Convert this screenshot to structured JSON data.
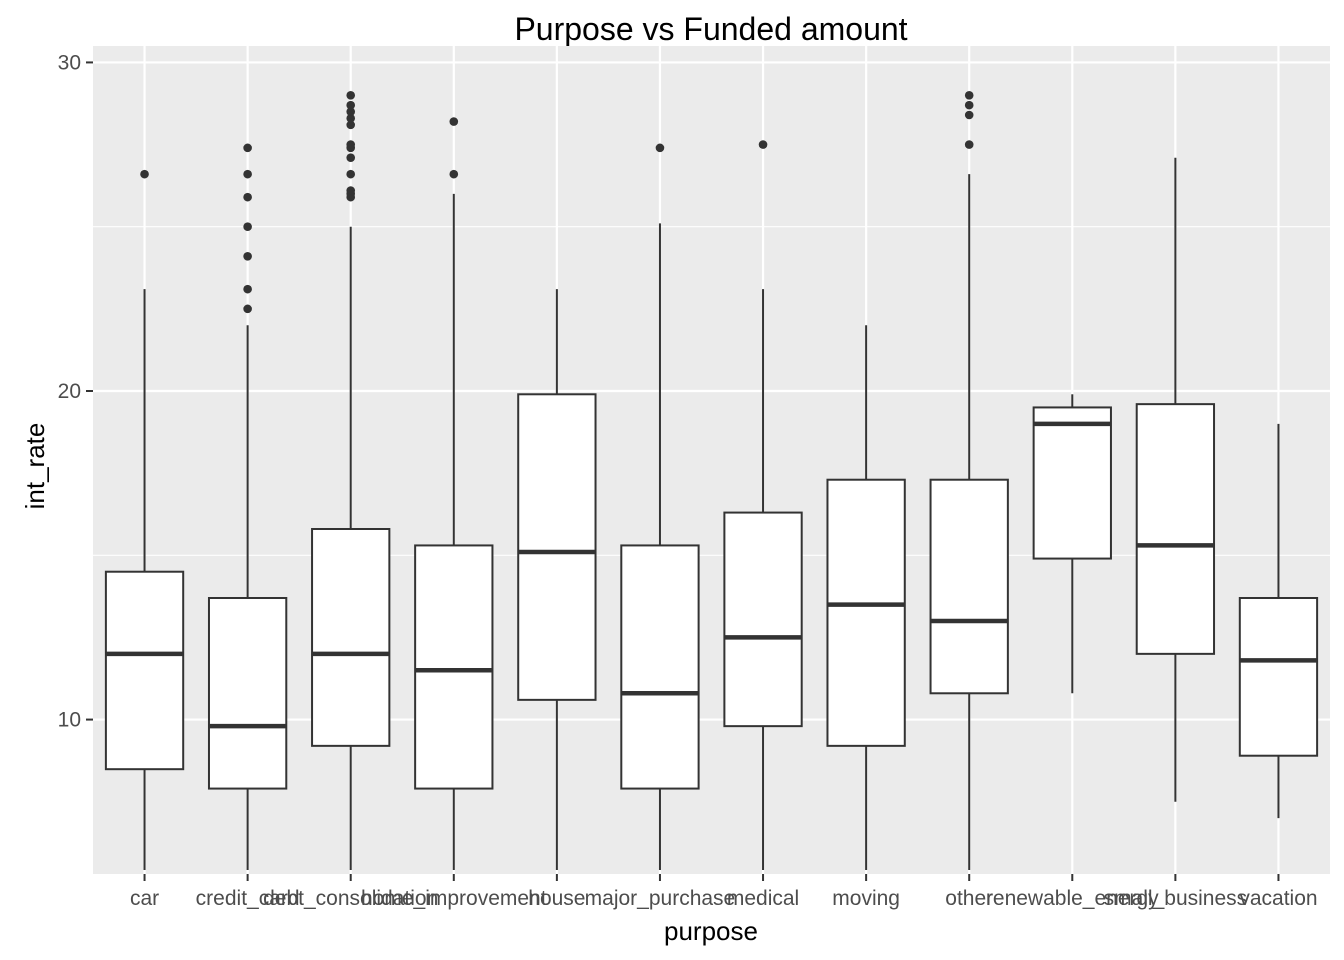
{
  "chart_data": {
    "type": "boxplot",
    "title": "Purpose vs Funded amount",
    "xlabel": "purpose",
    "ylabel": "int_rate",
    "ylim": [
      5.3,
      30.5
    ],
    "yticks": [
      10,
      20,
      30
    ],
    "grid": true,
    "legend": "none",
    "colors": {
      "panel": "#ebebeb",
      "grid": "#ffffff",
      "box_fill": "#ffffff",
      "stroke": "#333333",
      "tick_text": "#4d4d4d"
    },
    "categories": [
      "car",
      "credit_card",
      "debt_consolidation",
      "home_improvement",
      "house",
      "major_purchase",
      "medical",
      "moving",
      "other",
      "renewable_energy",
      "small_business",
      "vacation"
    ],
    "boxes": [
      {
        "category": "car",
        "whisker_low": 5.42,
        "q1": 8.49,
        "median": 12.0,
        "q3": 14.5,
        "whisker_high": 23.1,
        "outliers": [
          26.6
        ]
      },
      {
        "category": "credit_card",
        "whisker_low": 5.42,
        "q1": 7.9,
        "median": 9.8,
        "q3": 13.7,
        "whisker_high": 22.0,
        "outliers": [
          22.5,
          23.1,
          24.1,
          25.0,
          25.9,
          26.6,
          27.4
        ]
      },
      {
        "category": "debt_consolidation",
        "whisker_low": 5.42,
        "q1": 9.2,
        "median": 12.0,
        "q3": 15.8,
        "whisker_high": 25.0,
        "outliers": [
          25.9,
          26.0,
          26.1,
          26.6,
          27.1,
          27.4,
          27.5,
          28.1,
          28.3,
          28.5,
          28.7,
          29.0
        ]
      },
      {
        "category": "home_improvement",
        "whisker_low": 5.42,
        "q1": 7.9,
        "median": 11.5,
        "q3": 15.3,
        "whisker_high": 26.0,
        "outliers": [
          26.6,
          28.2
        ]
      },
      {
        "category": "house",
        "whisker_low": 5.42,
        "q1": 10.6,
        "median": 15.1,
        "q3": 19.9,
        "whisker_high": 23.1,
        "outliers": []
      },
      {
        "category": "major_purchase",
        "whisker_low": 5.42,
        "q1": 7.9,
        "median": 10.8,
        "q3": 15.3,
        "whisker_high": 25.1,
        "outliers": [
          27.4
        ]
      },
      {
        "category": "medical",
        "whisker_low": 5.42,
        "q1": 9.8,
        "median": 12.5,
        "q3": 16.3,
        "whisker_high": 23.1,
        "outliers": [
          27.5
        ]
      },
      {
        "category": "moving",
        "whisker_low": 5.42,
        "q1": 9.2,
        "median": 13.5,
        "q3": 17.3,
        "whisker_high": 22.0,
        "outliers": []
      },
      {
        "category": "other",
        "whisker_low": 5.42,
        "q1": 10.8,
        "median": 13.0,
        "q3": 17.3,
        "whisker_high": 26.6,
        "outliers": [
          27.5,
          28.4,
          28.7,
          29.0
        ]
      },
      {
        "category": "renewable_energy",
        "whisker_low": 10.8,
        "q1": 14.9,
        "median": 19.0,
        "q3": 19.5,
        "whisker_high": 19.9,
        "outliers": []
      },
      {
        "category": "small_business",
        "whisker_low": 7.5,
        "q1": 12.0,
        "median": 15.3,
        "q3": 19.6,
        "whisker_high": 27.1,
        "outliers": []
      },
      {
        "category": "vacation",
        "whisker_low": 7.0,
        "q1": 8.9,
        "median": 11.8,
        "q3": 13.7,
        "whisker_high": 19.0,
        "outliers": []
      }
    ]
  }
}
